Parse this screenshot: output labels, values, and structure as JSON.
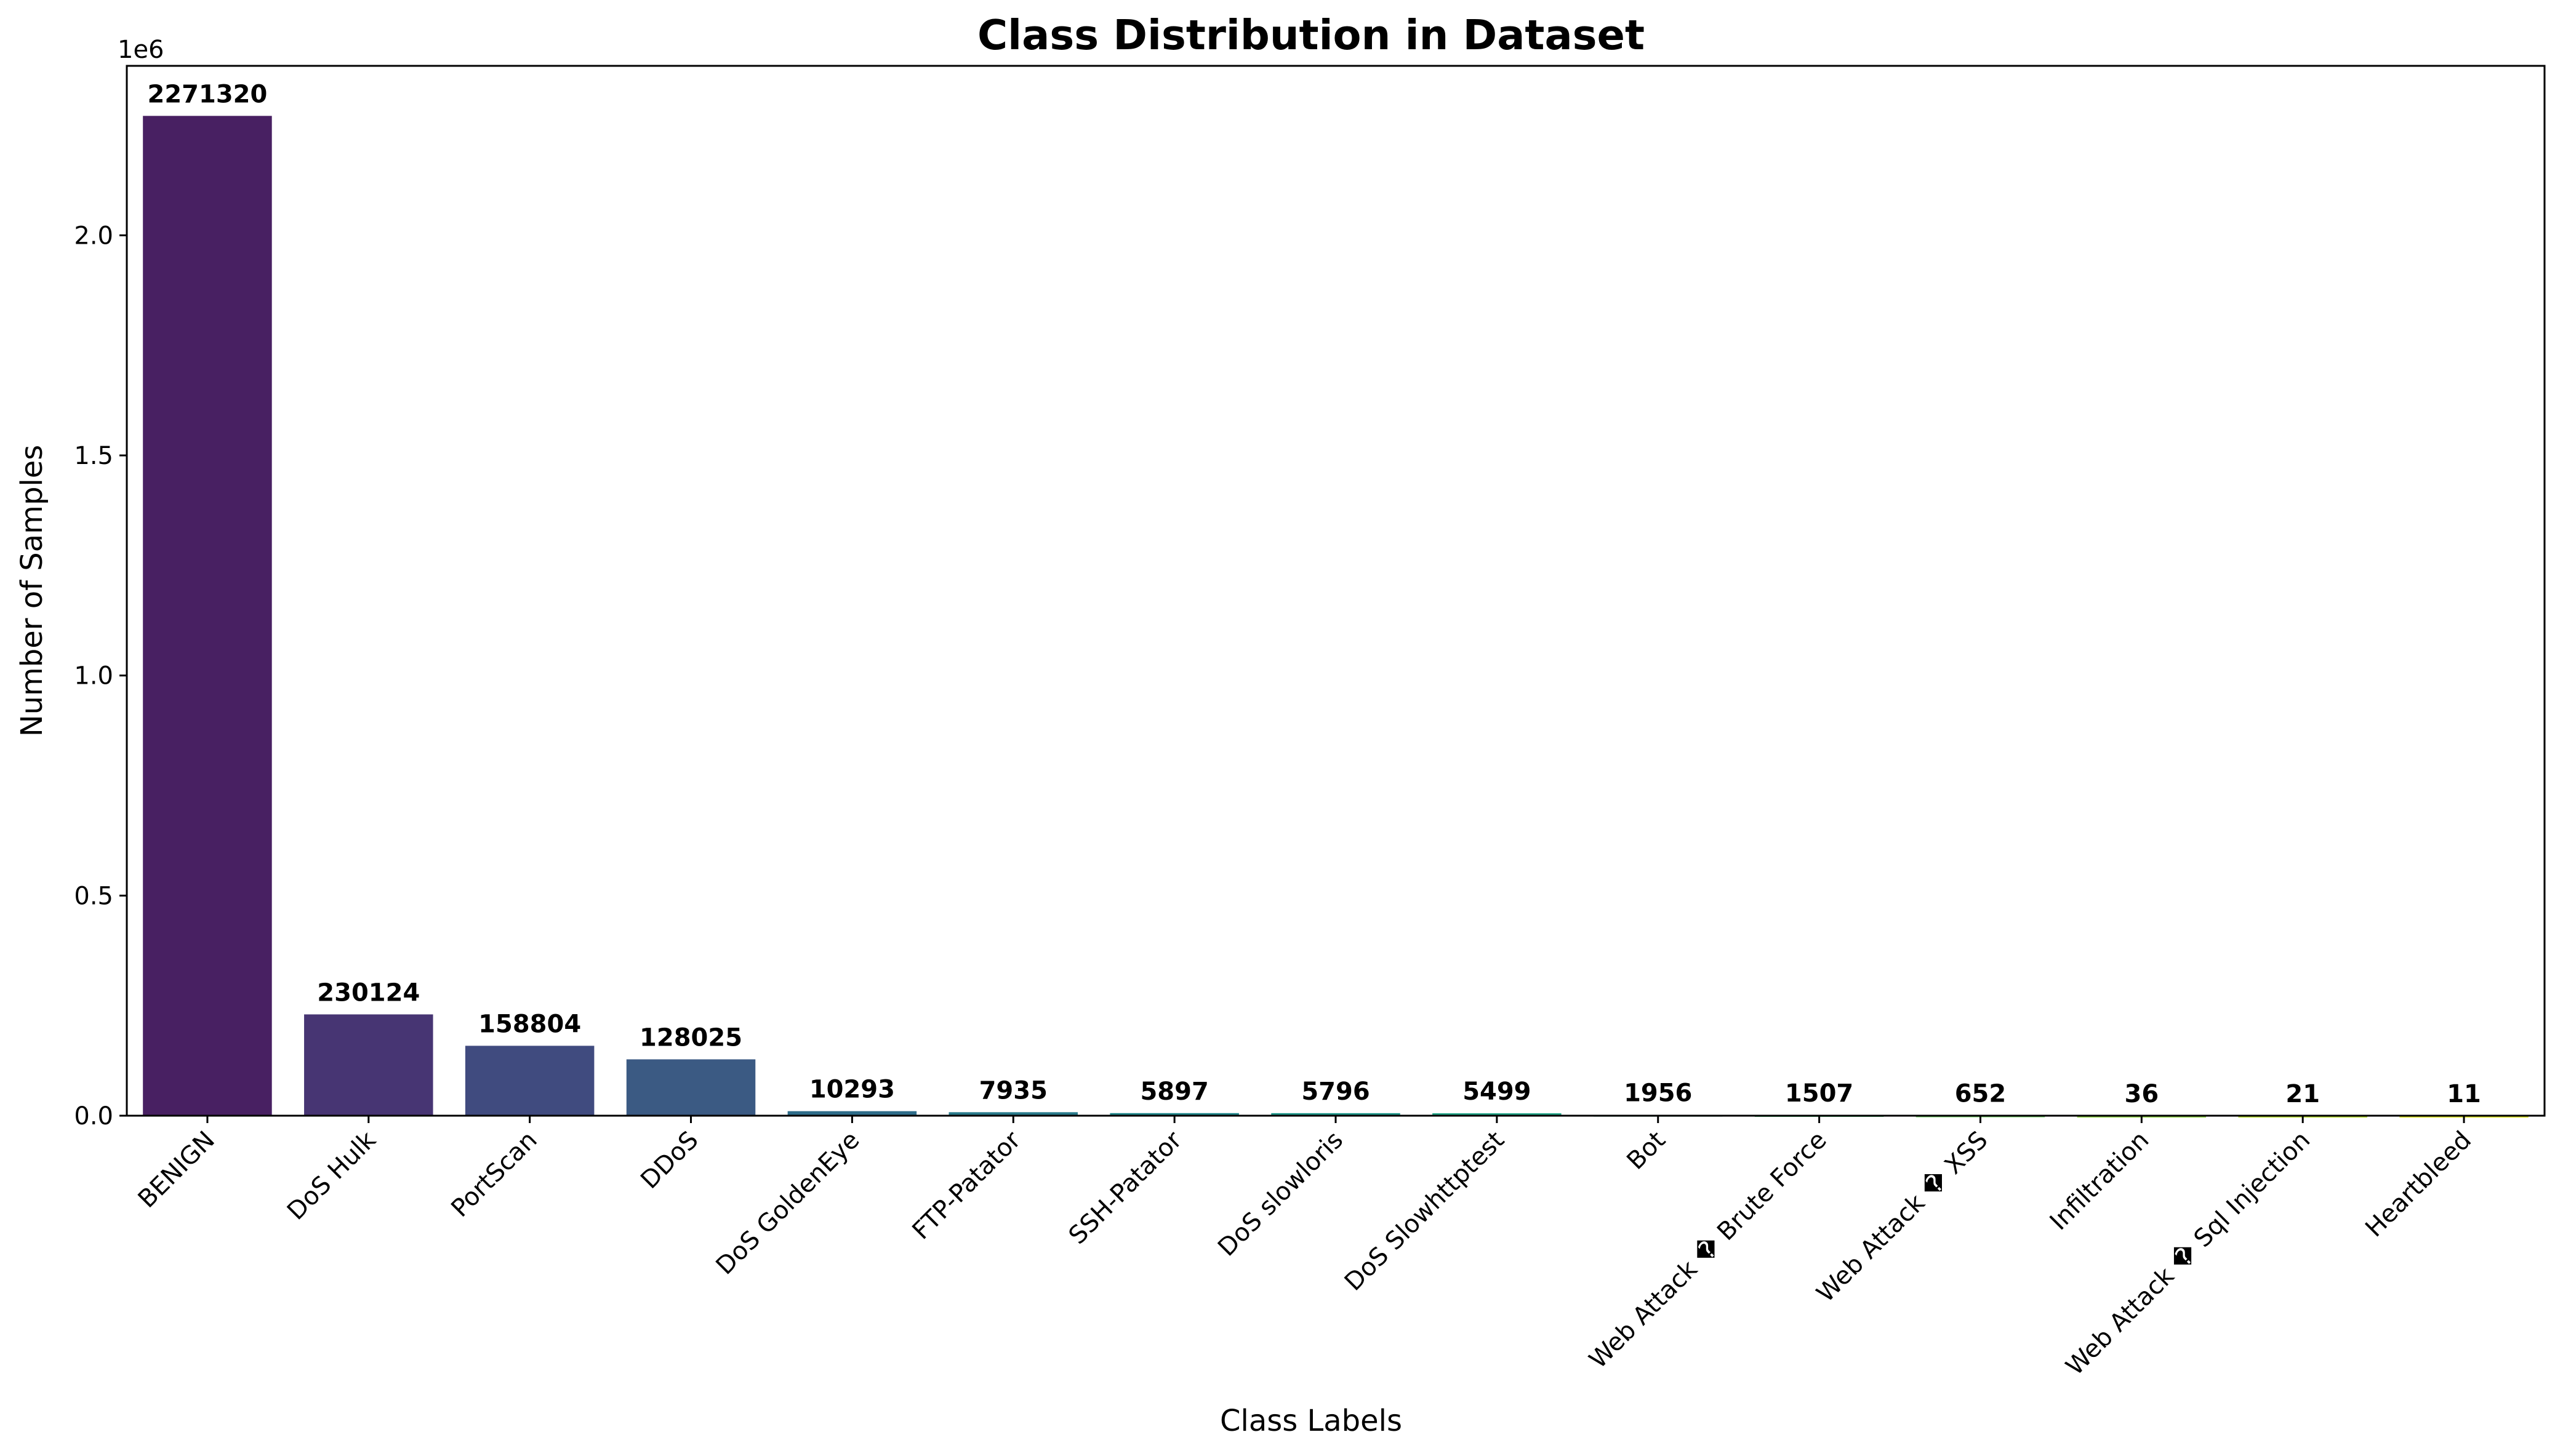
{
  "chart_data": {
    "type": "bar",
    "title": "Class Distribution in Dataset",
    "xlabel": "Class Labels",
    "ylabel": "Number of Samples",
    "y_offset_label": "1e6",
    "ylim": [
      0,
      2385000
    ],
    "yticks": [
      {
        "value": 0,
        "label": "0.0"
      },
      {
        "value": 500000,
        "label": "0.5"
      },
      {
        "value": 1000000,
        "label": "1.0"
      },
      {
        "value": 1500000,
        "label": "1.5"
      },
      {
        "value": 2000000,
        "label": "2.0"
      }
    ],
    "categories": [
      "BENIGN",
      "DoS Hulk",
      "PortScan",
      "DDoS",
      "DoS GoldenEye",
      "FTP-Patator",
      "SSH-Patator",
      "DoS slowloris",
      "DoS Slowhttptest",
      "Bot",
      "Web Attack � Brute Force",
      "Web Attack � XSS",
      "Infiltration",
      "Web Attack � Sql Injection",
      "Heartbleed"
    ],
    "values": [
      2271320,
      230124,
      158804,
      128025,
      10293,
      7935,
      5897,
      5796,
      5499,
      1956,
      1507,
      652,
      36,
      21,
      11
    ],
    "colors": [
      "#482062",
      "#473573",
      "#404b7f",
      "#3b5a83",
      "#2f6d8a",
      "#2a7b8c",
      "#22888c",
      "#1f988a",
      "#20a486",
      "#2fb47d",
      "#46c06f",
      "#68cb5c",
      "#8fd545",
      "#b8de2e",
      "#dde419"
    ],
    "grid": false,
    "legend": "none"
  }
}
